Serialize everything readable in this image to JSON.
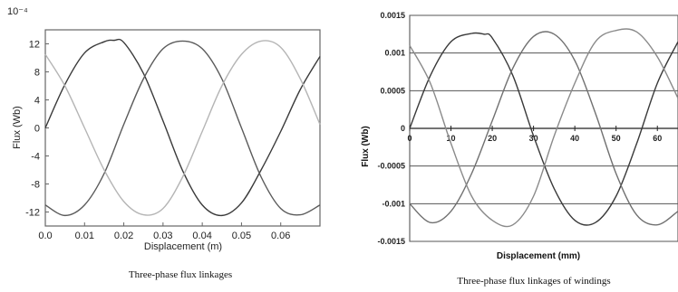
{
  "chart_data": [
    {
      "type": "line",
      "scale_label": "10⁻⁴",
      "xlabel": "Displacement (m)",
      "ylabel": "Flux (Wb)",
      "xlim": [
        0,
        0.07
      ],
      "ylim": [
        -14,
        14
      ],
      "x_ticks": [
        "0.0",
        "0.01",
        "0.02",
        "0.03",
        "0.04",
        "0.05",
        "0.06"
      ],
      "y_ticks": [
        "12",
        "8",
        "4",
        "0",
        "-4",
        "-8",
        "-12"
      ],
      "grid": false,
      "caption": "Three-phase flux linkages",
      "series": [
        {
          "color": "#3a3a3a",
          "x": [
            0,
            0.005,
            0.01,
            0.015,
            0.0175,
            0.02,
            0.025,
            0.03,
            0.035,
            0.04,
            0.045,
            0.05,
            0.055,
            0.06,
            0.065,
            0.07
          ],
          "y": [
            0,
            6.2,
            10.7,
            12.3,
            12.5,
            12.2,
            7.8,
            1.0,
            -6.1,
            -11.0,
            -12.5,
            -10.7,
            -6.0,
            -0.5,
            5.5,
            10.2
          ]
        },
        {
          "color": "#5a5a5a",
          "x": [
            0,
            0.005,
            0.01,
            0.015,
            0.02,
            0.025,
            0.03,
            0.035,
            0.04,
            0.045,
            0.05,
            0.055,
            0.06,
            0.065,
            0.07
          ],
          "y": [
            -11.0,
            -12.5,
            -11.0,
            -6.5,
            0.5,
            7.0,
            11.3,
            12.4,
            11.3,
            7.0,
            0.0,
            -7.0,
            -11.5,
            -12.4,
            -11.0
          ]
        },
        {
          "color": "#b5b5b5",
          "x": [
            0,
            0.005,
            0.01,
            0.015,
            0.02,
            0.025,
            0.03,
            0.035,
            0.04,
            0.045,
            0.05,
            0.055,
            0.06,
            0.065,
            0.07
          ],
          "y": [
            10.5,
            6.0,
            0.0,
            -6.0,
            -10.5,
            -12.4,
            -11.5,
            -7.0,
            -0.5,
            6.0,
            10.5,
            12.4,
            11.5,
            7.0,
            0.5
          ]
        }
      ]
    },
    {
      "type": "line",
      "xlabel": "Displacement (mm)",
      "ylabel": "Flux (Wb)",
      "xlim": [
        0,
        65
      ],
      "ylim": [
        -0.0015,
        0.0015
      ],
      "x_ticks": [
        "0",
        "10",
        "20",
        "30",
        "40",
        "50",
        "60"
      ],
      "y_ticks": [
        "0.0015",
        "0.001",
        "0.0005",
        "0",
        "-0.0005",
        "-0.001",
        "-0.0015"
      ],
      "grid": true,
      "caption": "Three-phase flux linkages  of windings",
      "series": [
        {
          "color": "#3a3a3a",
          "x": [
            0,
            5,
            10,
            15,
            18,
            20,
            25,
            30,
            35,
            40,
            45,
            50,
            55,
            60,
            65
          ],
          "y": [
            0,
            0.0007,
            0.00115,
            0.00126,
            0.00125,
            0.0012,
            0.0007,
            -0.0001,
            -0.0008,
            -0.00122,
            -0.00125,
            -0.0009,
            -0.0002,
            0.0006,
            0.00115
          ]
        },
        {
          "color": "#707070",
          "x": [
            0,
            5,
            10,
            15,
            20,
            25,
            30,
            35,
            40,
            45,
            50,
            55,
            60,
            65
          ],
          "y": [
            -0.001,
            -0.00125,
            -0.0011,
            -0.0006,
            0.0001,
            0.0008,
            0.00122,
            0.00125,
            0.0009,
            0.0002,
            -0.0006,
            -0.00115,
            -0.00128,
            -0.0011
          ]
        },
        {
          "color": "#8a8a8a",
          "x": [
            0,
            5,
            10,
            15,
            20,
            25,
            30,
            35,
            40,
            45,
            50,
            55,
            60,
            65
          ],
          "y": [
            0.0011,
            0.0006,
            -0.0002,
            -0.0009,
            -0.00122,
            -0.00128,
            -0.0009,
            -0.0001,
            0.0006,
            0.00115,
            0.0013,
            0.00128,
            0.00095,
            0.0004
          ]
        }
      ]
    }
  ]
}
